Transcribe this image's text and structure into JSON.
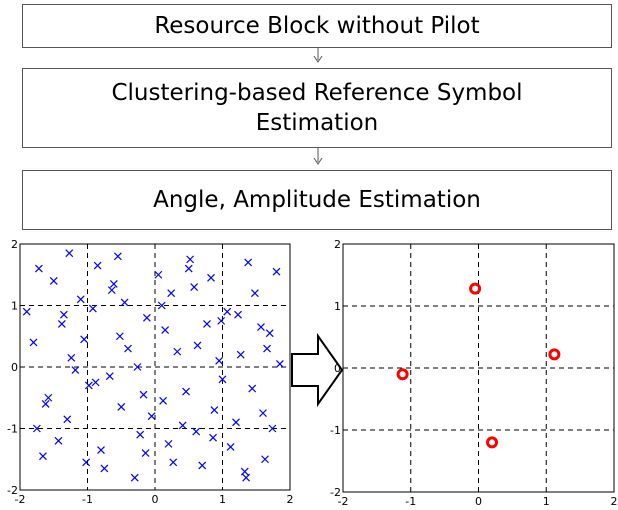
{
  "boxes": [
    {
      "label": "Resource Block without Pilot"
    },
    {
      "label": "Clustering-based Reference Symbol Estimation"
    },
    {
      "label": "Angle, Amplitude Estimation"
    }
  ],
  "chart_data": [
    {
      "type": "scatter",
      "marker": "x",
      "color": "#0000ff",
      "grid": true,
      "xlim": [
        -2,
        2
      ],
      "ylim": [
        -2,
        2
      ],
      "xticks": [
        -2,
        -1,
        0,
        1,
        2
      ],
      "yticks": [
        -2,
        -1,
        0,
        1,
        2
      ],
      "x": [
        -1.72,
        -1.35,
        -0.98,
        -0.61,
        -0.22,
        0.15,
        0.52,
        0.88,
        1.27,
        1.63,
        -1.58,
        -1.1,
        -0.75,
        -0.4,
        0.05,
        0.41,
        0.77,
        1.12,
        1.48,
        1.85,
        -1.9,
        -1.43,
        -1.05,
        -0.67,
        -0.3,
        0.1,
        0.46,
        0.83,
        1.2,
        1.57,
        -1.66,
        -1.24,
        -0.85,
        -0.5,
        -0.12,
        0.27,
        0.63,
        1.0,
        1.38,
        1.74,
        -1.8,
        -1.3,
        -0.92,
        -0.55,
        -0.17,
        0.2,
        0.58,
        0.95,
        1.33,
        1.7,
        -1.5,
        -1.18,
        -0.8,
        -0.45,
        -0.05,
        0.33,
        0.7,
        1.07,
        1.44,
        1.8,
        -1.62,
        -1.27,
        -0.88,
        -0.52,
        -0.14,
        0.24,
        0.61,
        0.98,
        1.35,
        1.66,
        -1.75,
        -1.38,
        -1.02,
        -0.64,
        -0.26,
        0.12,
        0.5,
        0.86,
        1.23,
        1.6
      ],
      "values": [
        1.6,
        0.85,
        -0.3,
        1.35,
        -1.1,
        0.6,
        1.75,
        -0.7,
        0.2,
        -1.5,
        -0.5,
        1.1,
        -1.65,
        0.3,
        1.5,
        -0.95,
        0.7,
        -1.3,
        1.2,
        0.05,
        0.9,
        -1.2,
        0.45,
        -0.15,
        -1.8,
        1.0,
        -0.4,
        1.45,
        -0.9,
        0.65,
        -1.45,
        0.15,
        1.65,
        -0.65,
        0.8,
        -1.55,
        0.35,
        -0.2,
        1.7,
        -1.0,
        0.4,
        -0.85,
        0.95,
        1.8,
        -0.45,
        -1.25,
        1.3,
        0.1,
        -1.7,
        0.55,
        1.4,
        -0.05,
        -1.35,
        1.05,
        -0.8,
        0.25,
        -1.6,
        0.9,
        -0.35,
        1.55,
        -0.6,
        1.85,
        -0.25,
        0.5,
        -1.4,
        1.2,
        -1.05,
        0.75,
        -1.8,
        0.3,
        -1.0,
        0.7,
        -1.55,
        1.25,
        0.0,
        -0.55,
        1.6,
        -1.15,
        0.85,
        -0.75
      ]
    },
    {
      "type": "scatter",
      "marker": "circle",
      "color": "#ff0000",
      "grid": true,
      "xlim": [
        -2,
        2
      ],
      "ylim": [
        -2,
        2
      ],
      "xticks": [
        -2,
        -1,
        0,
        1,
        2
      ],
      "yticks": [
        -2,
        -1,
        0,
        1,
        2
      ],
      "x": [
        -0.05,
        1.12,
        -1.12,
        0.2
      ],
      "values": [
        1.28,
        0.22,
        -0.1,
        -1.2
      ]
    }
  ]
}
